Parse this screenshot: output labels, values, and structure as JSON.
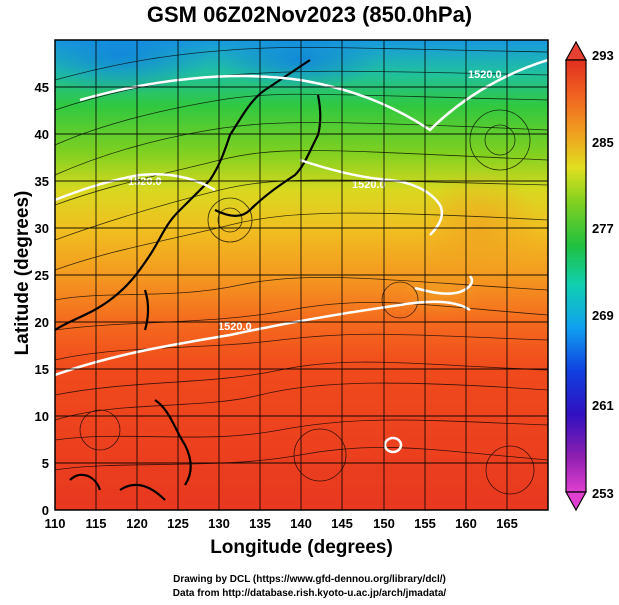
{
  "title": "GSM 06Z02Nov2023 (850.0hPa)",
  "xaxis": {
    "title": "Longitude (degrees)",
    "ticks": [
      "110",
      "115",
      "120",
      "125",
      "130",
      "135",
      "140",
      "145",
      "150",
      "155",
      "160",
      "165"
    ],
    "range": [
      110,
      170
    ]
  },
  "yaxis": {
    "title": "Latitude (degrees)",
    "ticks": [
      "0",
      "5",
      "10",
      "15",
      "20",
      "25",
      "30",
      "35",
      "40",
      "45"
    ],
    "range": [
      0,
      50
    ]
  },
  "colorbar": {
    "ticks": [
      "253",
      "261",
      "269",
      "277",
      "285",
      "293"
    ],
    "min": 253,
    "max": 293,
    "colors": [
      "#e040d0",
      "#5a00a0",
      "#1010d0",
      "#1090f0",
      "#10d0d0",
      "#20c040",
      "#60d020",
      "#d0e020",
      "#f0b020",
      "#f07020",
      "#f04020",
      "#e03020"
    ]
  },
  "contours": {
    "labels": [
      "1520.0",
      "1520.0",
      "1520.0",
      "1520.0"
    ],
    "color": "#ffffff"
  },
  "credits": {
    "line1": "Drawing by DCL (https://www.gfd-dennou.org/library/dcl/)",
    "line2": "Data from http://database.rish.kyoto-u.ac.jp/arch/jmadata/"
  }
}
